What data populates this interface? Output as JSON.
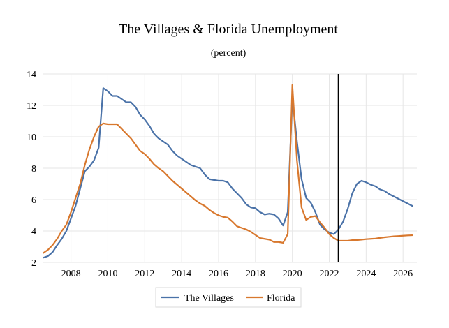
{
  "chart_data": {
    "type": "line",
    "title": "The Villages & Florida Unemployment",
    "subtitle": "(percent)",
    "xlabel": "",
    "ylabel": "",
    "xlim": [
      2006.5,
      2026.75
    ],
    "ylim": [
      2,
      14
    ],
    "x_ticks": [
      2008,
      2010,
      2012,
      2014,
      2016,
      2018,
      2020,
      2022,
      2024,
      2026
    ],
    "y_ticks": [
      2,
      4,
      6,
      8,
      10,
      12,
      14
    ],
    "grid": true,
    "legend_placement": "bottom-center",
    "vertical_line": {
      "x": 2022.5,
      "color": "#000000"
    },
    "series": [
      {
        "name": "The Villages",
        "color": "#4a72a8",
        "points": [
          [
            2006.5,
            2.3
          ],
          [
            2006.75,
            2.4
          ],
          [
            2007.0,
            2.65
          ],
          [
            2007.25,
            3.1
          ],
          [
            2007.5,
            3.5
          ],
          [
            2007.75,
            4.0
          ],
          [
            2008.0,
            4.8
          ],
          [
            2008.25,
            5.6
          ],
          [
            2008.5,
            6.7
          ],
          [
            2008.75,
            7.8
          ],
          [
            2009.0,
            8.1
          ],
          [
            2009.25,
            8.5
          ],
          [
            2009.5,
            9.3
          ],
          [
            2009.75,
            13.1
          ],
          [
            2010.0,
            12.9
          ],
          [
            2010.25,
            12.6
          ],
          [
            2010.5,
            12.6
          ],
          [
            2010.75,
            12.4
          ],
          [
            2011.0,
            12.2
          ],
          [
            2011.25,
            12.2
          ],
          [
            2011.5,
            11.9
          ],
          [
            2011.75,
            11.4
          ],
          [
            2012.0,
            11.1
          ],
          [
            2012.25,
            10.7
          ],
          [
            2012.5,
            10.2
          ],
          [
            2012.75,
            9.9
          ],
          [
            2013.0,
            9.7
          ],
          [
            2013.25,
            9.5
          ],
          [
            2013.5,
            9.1
          ],
          [
            2013.75,
            8.8
          ],
          [
            2014.0,
            8.6
          ],
          [
            2014.25,
            8.4
          ],
          [
            2014.5,
            8.2
          ],
          [
            2014.75,
            8.1
          ],
          [
            2015.0,
            8.0
          ],
          [
            2015.25,
            7.6
          ],
          [
            2015.5,
            7.3
          ],
          [
            2015.75,
            7.25
          ],
          [
            2016.0,
            7.2
          ],
          [
            2016.25,
            7.2
          ],
          [
            2016.5,
            7.1
          ],
          [
            2016.75,
            6.7
          ],
          [
            2017.0,
            6.4
          ],
          [
            2017.25,
            6.1
          ],
          [
            2017.5,
            5.7
          ],
          [
            2017.75,
            5.5
          ],
          [
            2018.0,
            5.45
          ],
          [
            2018.25,
            5.2
          ],
          [
            2018.5,
            5.05
          ],
          [
            2018.75,
            5.1
          ],
          [
            2019.0,
            5.05
          ],
          [
            2019.25,
            4.8
          ],
          [
            2019.5,
            4.35
          ],
          [
            2019.75,
            5.2
          ],
          [
            2020.0,
            12.5
          ],
          [
            2020.25,
            9.7
          ],
          [
            2020.5,
            7.3
          ],
          [
            2020.75,
            6.1
          ],
          [
            2021.0,
            5.8
          ],
          [
            2021.25,
            5.2
          ],
          [
            2021.5,
            4.4
          ],
          [
            2021.75,
            4.1
          ],
          [
            2022.0,
            3.9
          ],
          [
            2022.25,
            3.8
          ],
          [
            2022.5,
            4.1
          ],
          [
            2022.75,
            4.6
          ],
          [
            2023.0,
            5.4
          ],
          [
            2023.25,
            6.4
          ],
          [
            2023.5,
            7.0
          ],
          [
            2023.75,
            7.2
          ],
          [
            2024.0,
            7.1
          ],
          [
            2024.25,
            6.95
          ],
          [
            2024.5,
            6.85
          ],
          [
            2024.75,
            6.65
          ],
          [
            2025.0,
            6.55
          ],
          [
            2025.25,
            6.35
          ],
          [
            2025.5,
            6.2
          ],
          [
            2025.75,
            6.05
          ],
          [
            2026.0,
            5.9
          ],
          [
            2026.25,
            5.75
          ],
          [
            2026.5,
            5.6
          ]
        ]
      },
      {
        "name": "Florida",
        "color": "#d8782e",
        "points": [
          [
            2006.5,
            2.6
          ],
          [
            2006.75,
            2.8
          ],
          [
            2007.0,
            3.1
          ],
          [
            2007.25,
            3.5
          ],
          [
            2007.5,
            4.0
          ],
          [
            2007.75,
            4.4
          ],
          [
            2008.0,
            5.2
          ],
          [
            2008.25,
            6.1
          ],
          [
            2008.5,
            7.0
          ],
          [
            2008.75,
            8.2
          ],
          [
            2009.0,
            9.2
          ],
          [
            2009.25,
            10.0
          ],
          [
            2009.5,
            10.65
          ],
          [
            2009.75,
            10.85
          ],
          [
            2010.0,
            10.8
          ],
          [
            2010.25,
            10.8
          ],
          [
            2010.5,
            10.8
          ],
          [
            2010.75,
            10.5
          ],
          [
            2011.0,
            10.2
          ],
          [
            2011.25,
            9.9
          ],
          [
            2011.5,
            9.5
          ],
          [
            2011.75,
            9.1
          ],
          [
            2012.0,
            8.9
          ],
          [
            2012.25,
            8.6
          ],
          [
            2012.5,
            8.25
          ],
          [
            2012.75,
            8.0
          ],
          [
            2013.0,
            7.8
          ],
          [
            2013.25,
            7.5
          ],
          [
            2013.5,
            7.2
          ],
          [
            2013.75,
            6.95
          ],
          [
            2014.0,
            6.7
          ],
          [
            2014.25,
            6.45
          ],
          [
            2014.5,
            6.2
          ],
          [
            2014.75,
            5.95
          ],
          [
            2015.0,
            5.75
          ],
          [
            2015.25,
            5.6
          ],
          [
            2015.5,
            5.35
          ],
          [
            2015.75,
            5.15
          ],
          [
            2016.0,
            5.0
          ],
          [
            2016.25,
            4.9
          ],
          [
            2016.5,
            4.85
          ],
          [
            2016.75,
            4.6
          ],
          [
            2017.0,
            4.3
          ],
          [
            2017.25,
            4.2
          ],
          [
            2017.5,
            4.1
          ],
          [
            2017.75,
            3.95
          ],
          [
            2018.0,
            3.75
          ],
          [
            2018.25,
            3.55
          ],
          [
            2018.5,
            3.5
          ],
          [
            2018.75,
            3.45
          ],
          [
            2019.0,
            3.3
          ],
          [
            2019.25,
            3.3
          ],
          [
            2019.5,
            3.25
          ],
          [
            2019.75,
            3.8
          ],
          [
            2020.0,
            13.3
          ],
          [
            2020.25,
            8.5
          ],
          [
            2020.5,
            5.5
          ],
          [
            2020.75,
            4.7
          ],
          [
            2021.0,
            4.9
          ],
          [
            2021.25,
            4.95
          ],
          [
            2021.5,
            4.55
          ],
          [
            2021.75,
            4.2
          ],
          [
            2022.0,
            3.8
          ],
          [
            2022.25,
            3.55
          ],
          [
            2022.5,
            3.38
          ],
          [
            2022.75,
            3.38
          ],
          [
            2023.0,
            3.38
          ],
          [
            2023.25,
            3.42
          ],
          [
            2023.5,
            3.42
          ],
          [
            2023.75,
            3.45
          ],
          [
            2024.0,
            3.48
          ],
          [
            2024.25,
            3.5
          ],
          [
            2024.5,
            3.52
          ],
          [
            2024.75,
            3.56
          ],
          [
            2025.0,
            3.6
          ],
          [
            2025.25,
            3.63
          ],
          [
            2025.5,
            3.66
          ],
          [
            2025.75,
            3.68
          ],
          [
            2026.0,
            3.7
          ],
          [
            2026.25,
            3.72
          ],
          [
            2026.5,
            3.73
          ]
        ]
      }
    ]
  }
}
